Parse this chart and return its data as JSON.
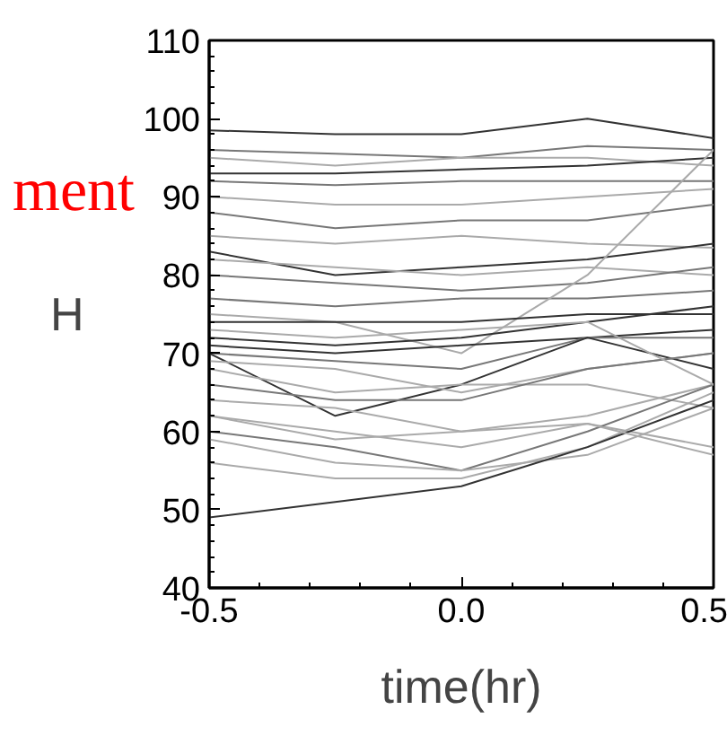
{
  "chart_data": {
    "type": "line",
    "xlabel": "time(hr)",
    "ylabel": "H",
    "annotations": [
      "ment"
    ],
    "x": [
      -0.5,
      -0.25,
      0,
      0.25,
      0.5
    ],
    "xlim": [
      -0.5,
      0.5
    ],
    "xticks": [
      {
        "value": -0.5,
        "label": "-0.5"
      },
      {
        "value": 0,
        "label": "0.0"
      },
      {
        "value": 0.5,
        "label": "0.5"
      }
    ],
    "ylim": [
      40,
      110
    ],
    "yticks": [
      40,
      50,
      60,
      70,
      80,
      90,
      100,
      110
    ],
    "grid": false,
    "marker": "none",
    "line_style": "solid",
    "series": [
      {
        "color": "#333333",
        "values": [
          98.5,
          98,
          98,
          100,
          97.5
        ]
      },
      {
        "color": "#777777",
        "values": [
          96,
          95.5,
          95,
          96.5,
          96
        ]
      },
      {
        "color": "#aaaaaa",
        "values": [
          95,
          94,
          95,
          95,
          94
        ]
      },
      {
        "color": "#333333",
        "values": [
          93,
          93,
          93.5,
          94,
          95
        ]
      },
      {
        "color": "#777777",
        "values": [
          92,
          91.5,
          92,
          92,
          92
        ]
      },
      {
        "color": "#aaaaaa",
        "values": [
          90,
          89,
          89,
          90,
          91
        ]
      },
      {
        "color": "#777777",
        "values": [
          88,
          86,
          87,
          87,
          89
        ]
      },
      {
        "color": "#aaaaaa",
        "values": [
          85,
          84,
          85,
          84,
          83.5
        ]
      },
      {
        "color": "#333333",
        "values": [
          83,
          80,
          81,
          82,
          84
        ]
      },
      {
        "color": "#aaaaaa",
        "values": [
          82,
          81,
          80,
          81,
          80
        ]
      },
      {
        "color": "#777777",
        "values": [
          80,
          79,
          78,
          79,
          81
        ]
      },
      {
        "color": "#777777",
        "values": [
          77,
          76,
          77,
          77,
          78
        ]
      },
      {
        "color": "#aaaaaa",
        "values": [
          75,
          74,
          70,
          80,
          96
        ]
      },
      {
        "color": "#333333",
        "values": [
          74,
          74,
          74,
          75,
          75
        ]
      },
      {
        "color": "#333333",
        "values": [
          72,
          71,
          72,
          74,
          76
        ]
      },
      {
        "color": "#333333",
        "values": [
          71,
          70,
          71,
          72,
          73
        ]
      },
      {
        "color": "#777777",
        "values": [
          70,
          69,
          68,
          72,
          72
        ]
      },
      {
        "color": "#333333",
        "values": [
          70,
          62,
          66,
          72,
          68
        ]
      },
      {
        "color": "#aaaaaa",
        "values": [
          69,
          68,
          65,
          68,
          70
        ]
      },
      {
        "color": "#aaaaaa",
        "values": [
          68,
          65,
          66,
          66,
          63
        ]
      },
      {
        "color": "#777777",
        "values": [
          66,
          64,
          64,
          68,
          70
        ]
      },
      {
        "color": "#aaaaaa",
        "values": [
          64,
          63,
          60,
          62,
          66
        ]
      },
      {
        "color": "#aaaaaa",
        "values": [
          62,
          59,
          60,
          61,
          58
        ]
      },
      {
        "color": "#777777",
        "values": [
          60,
          58,
          55,
          60,
          66
        ]
      },
      {
        "color": "#aaaaaa",
        "values": [
          59,
          56,
          55,
          57,
          63
        ]
      },
      {
        "color": "#aaaaaa",
        "values": [
          56,
          54,
          54,
          58,
          65
        ]
      },
      {
        "color": "#333333",
        "values": [
          49,
          51,
          53,
          58,
          64
        ]
      },
      {
        "color": "#aaaaaa",
        "values": [
          73,
          72,
          73,
          74,
          66
        ]
      },
      {
        "color": "#aaaaaa",
        "values": [
          62,
          60,
          58,
          61,
          57
        ]
      }
    ]
  }
}
